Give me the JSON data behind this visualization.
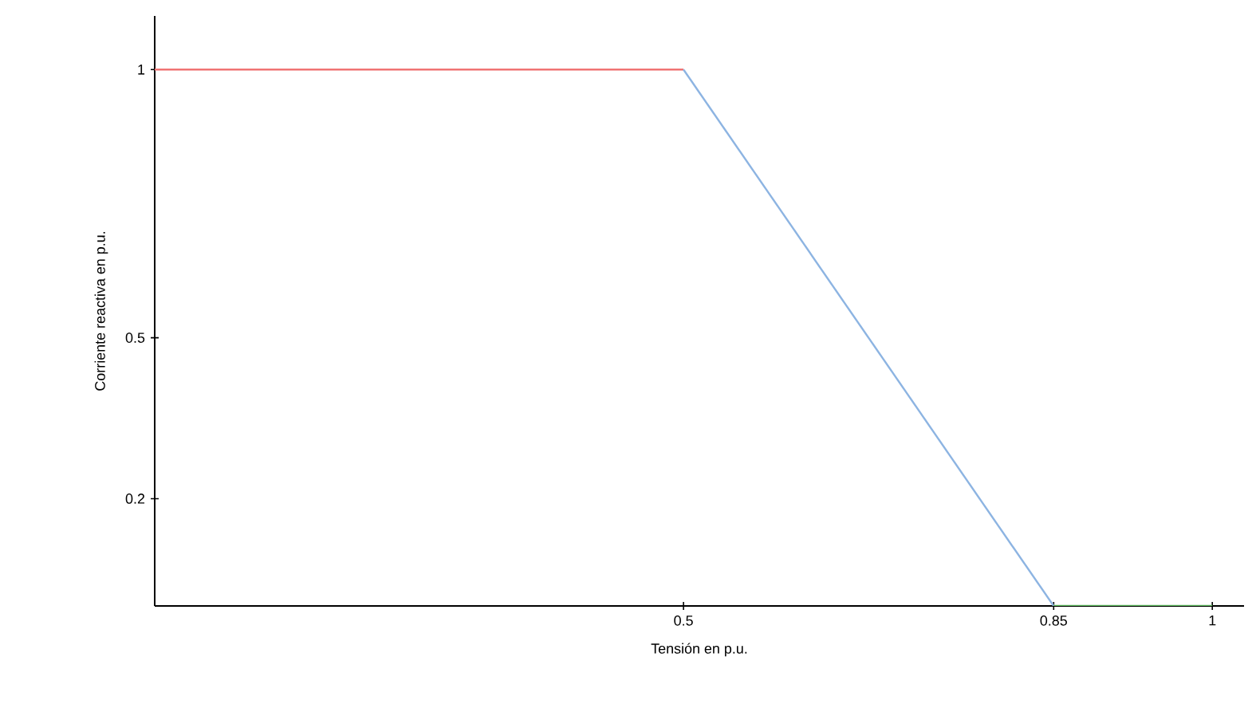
{
  "chart_data": {
    "type": "line",
    "xlabel": "Tensión en p.u.",
    "ylabel": "Corriente reactiva en p.u.",
    "series": [
      {
        "color": "#f07474",
        "x": [
          0,
          0.5
        ],
        "values": [
          1,
          1
        ]
      },
      {
        "color": "#8db4e2",
        "x": [
          0.5,
          0.85
        ],
        "values": [
          1,
          0
        ]
      },
      {
        "color": "#5cb85c",
        "x": [
          0.85,
          1
        ],
        "values": [
          0,
          0
        ]
      }
    ],
    "xlim": [
      0,
      1.03
    ],
    "ylim": [
      0,
      1.1
    ],
    "xticks": [
      0.5,
      0.85,
      1
    ],
    "yticks": [
      0.2,
      0.5,
      1
    ],
    "grid": false,
    "marker": "none",
    "line_style": "solid"
  }
}
